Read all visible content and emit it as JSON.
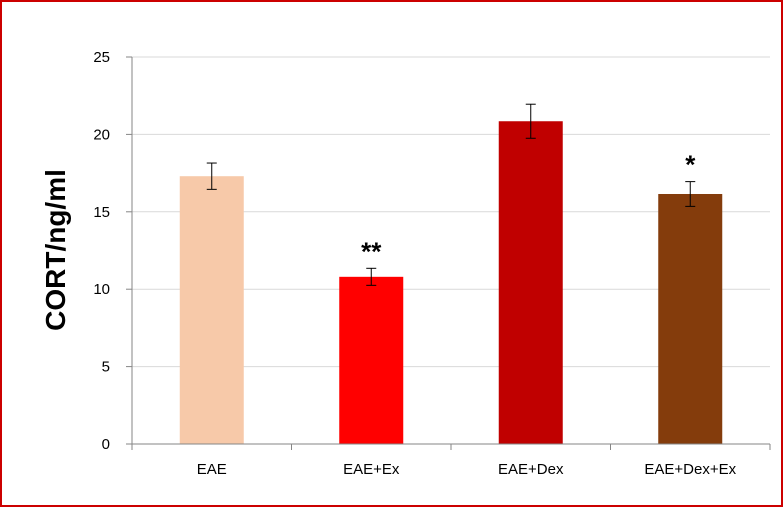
{
  "chart_data": {
    "type": "bar",
    "categories": [
      "EAE",
      "EAE+Ex",
      "EAE+Dex",
      "EAE+Dex+Ex"
    ],
    "values": [
      17.3,
      10.8,
      20.85,
      16.15
    ],
    "errors": [
      0.85,
      0.55,
      1.1,
      0.8
    ],
    "annotations": [
      "",
      "**",
      "",
      "*"
    ],
    "colors": [
      "#f7c9a9",
      "#ff0000",
      "#c00000",
      "#843c0c"
    ],
    "ylabel": "CORT/ng/ml",
    "ylim": [
      0,
      25
    ],
    "yticks": [
      0,
      5,
      10,
      15,
      20,
      25
    ],
    "grid": true,
    "gridlines": "horizontal"
  },
  "colors": {
    "border": "#cc0000",
    "grid": "#d9d9d9",
    "axis": "#868686"
  }
}
